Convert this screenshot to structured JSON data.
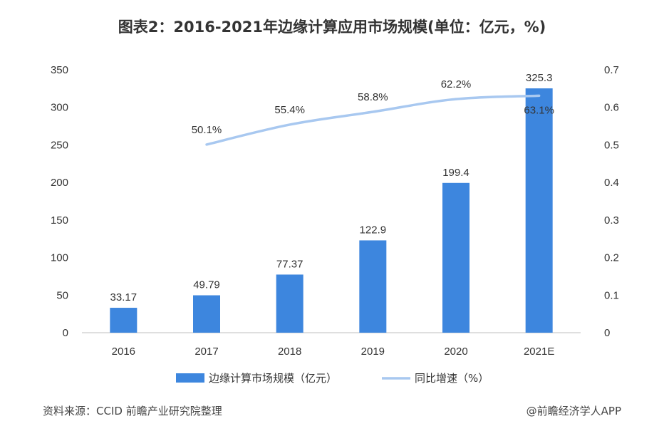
{
  "title": "图表2：2016-2021年边缘计算应用市场规模(单位：亿元，%)",
  "source": "资料来源：CCID 前瞻产业研究院整理",
  "credit": "@前瞻经济学人APP",
  "colors": {
    "bar": "#3d86de",
    "line": "#a8c8f0",
    "axis": "#bfbfbf"
  },
  "chart_data": {
    "type": "bar",
    "categories": [
      "2016",
      "2017",
      "2018",
      "2019",
      "2020",
      "2021E"
    ],
    "series": [
      {
        "name": "边缘计算市场规模（亿元）",
        "type": "bar",
        "axis": "left",
        "values": [
          33.17,
          49.79,
          77.37,
          122.9,
          199.4,
          325.3
        ],
        "labels": [
          "33.17",
          "49.79",
          "77.37",
          "122.9",
          "199.4",
          "325.3"
        ]
      },
      {
        "name": "同比增速（%）",
        "type": "line",
        "axis": "right",
        "values": [
          null,
          0.501,
          0.554,
          0.588,
          0.622,
          0.631
        ],
        "labels": [
          "",
          "50.1%",
          "55.4%",
          "58.8%",
          "62.2%",
          "63.1%"
        ]
      }
    ],
    "y_left": {
      "min": 0,
      "max": 350,
      "ticks": [
        "0",
        "50",
        "100",
        "150",
        "200",
        "250",
        "300",
        "350"
      ]
    },
    "y_right": {
      "min": 0,
      "max": 0.7,
      "ticks": [
        "0",
        "0.1",
        "0.2",
        "0.3",
        "0.4",
        "0.5",
        "0.6",
        "0.7"
      ]
    },
    "grid": false,
    "legend": "bottom-center"
  }
}
